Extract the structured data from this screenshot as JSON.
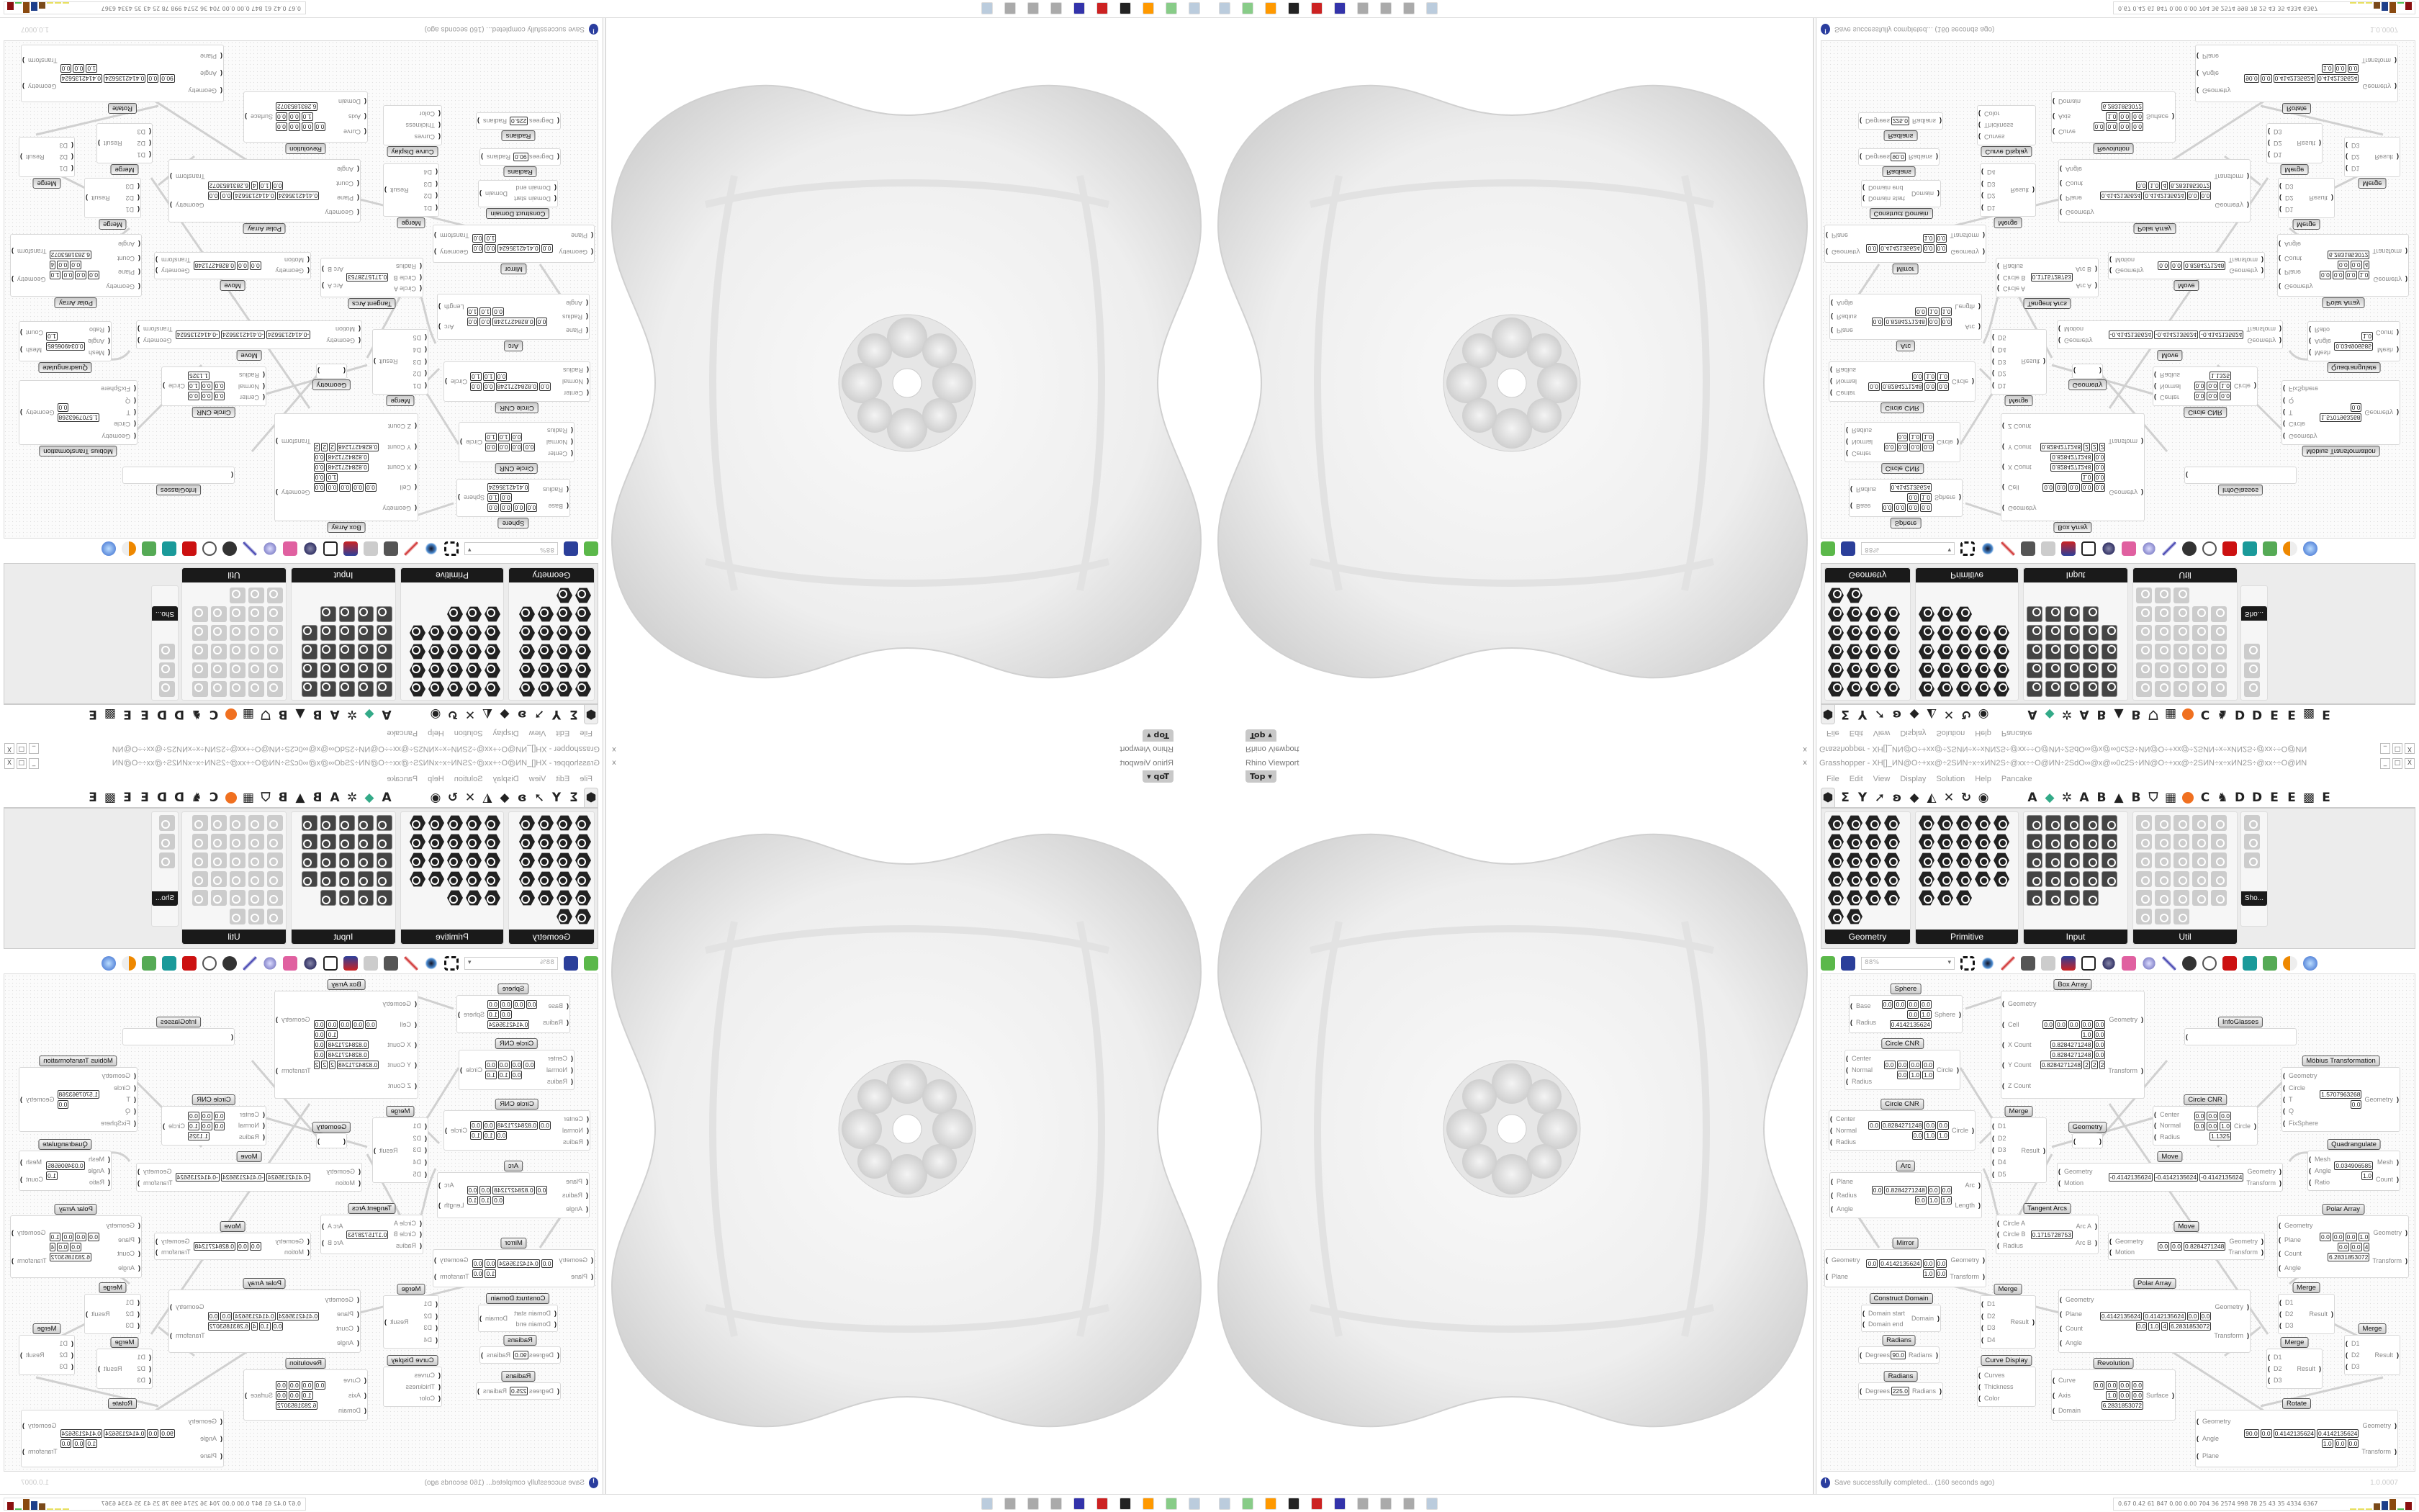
{
  "viewport": {
    "title": "Rhino Viewport",
    "view": "Top",
    "close": "x"
  },
  "grasshopper": {
    "title": "Grasshopper - XH[]_ИN@O÷+xx@÷2SИN÷x÷xИN2S÷@xx÷÷O@ИN÷2SdO∞@x@∞0c2S÷ИN@O÷+xx@÷2SИN÷x÷xИN2S÷@xx÷÷O@ИN",
    "window_buttons": [
      "_",
      "□",
      "X"
    ],
    "menu": [
      "File",
      "Edit",
      "View",
      "Display",
      "Solution",
      "Help",
      "Pancake"
    ],
    "tab_letters": [
      "A",
      "A",
      "B",
      "B",
      "C",
      "D",
      "D",
      "E",
      "E",
      "E"
    ],
    "ribbon_panels": [
      "Geometry",
      "Primitive",
      "Input",
      "Util"
    ],
    "overflow_panel": "Sho...",
    "zoom": "88%",
    "status": "Save successfully completed... (160 seconds ago)",
    "version": "1.0.0007"
  },
  "canvas": {
    "components": [
      {
        "title": "Sphere",
        "inputs": [
          "Base",
          "Radius"
        ],
        "outputs": [
          "Sphere"
        ],
        "values": [
          "0.0",
          "0.0",
          "0.0",
          "0.0",
          "0.0",
          "1.0",
          "0.4142135624"
        ]
      },
      {
        "title": "Box Array",
        "inputs": [
          "Geometry",
          "Cell",
          "X Count",
          "Y Count",
          "Z Count"
        ],
        "outputs": [
          "Geometry",
          "Transform"
        ],
        "values": [
          "0.0",
          "0.0",
          "0.0",
          "0.0",
          "0.0",
          "1.0",
          "0.0",
          "0.8284271248",
          "0.0",
          "0.8284271248",
          "0.0",
          "0.8284271248",
          "2",
          "2",
          "2"
        ]
      },
      {
        "title": "Circle CNR",
        "inputs": [
          "Center",
          "Normal",
          "Radius"
        ],
        "outputs": [
          "Circle"
        ],
        "values": [
          "0.0",
          "0.0",
          "0.0",
          "0.0",
          "0.0",
          "1.0",
          "1.0"
        ]
      },
      {
        "title": "Circle CNR",
        "inputs": [
          "Center",
          "Normal",
          "Radius"
        ],
        "outputs": [
          "Circle"
        ],
        "values": [
          "0.0",
          "0.8284271248",
          "0.0",
          "0.0",
          "0.0",
          "1.0",
          "1.0"
        ]
      },
      {
        "title": "Merge",
        "inputs": [
          "D1",
          "D2",
          "D3",
          "D4",
          "D5"
        ],
        "outputs": [
          "Result"
        ],
        "values": []
      },
      {
        "title": "Geometry",
        "inputs": [
          ""
        ],
        "outputs": [
          ""
        ],
        "values": []
      },
      {
        "title": "Arc",
        "inputs": [
          "Plane",
          "Radius",
          "Angle"
        ],
        "outputs": [
          "Arc",
          "Length"
        ],
        "values": [
          "0.0",
          "0.8284271248",
          "0.0",
          "0.0",
          "0.0",
          "1.0",
          "1.0"
        ]
      },
      {
        "title": "Move",
        "inputs": [
          "Geometry",
          "Motion"
        ],
        "outputs": [
          "Geometry",
          "Transform"
        ],
        "values": [
          "-0.4142135624",
          "-0.4142135624",
          "-0.4142135624"
        ]
      },
      {
        "title": "Tangent Arcs",
        "inputs": [
          "Circle A",
          "Circle B",
          "Radius"
        ],
        "outputs": [
          "Arc A",
          "Arc B"
        ],
        "values": [
          "0.1715728753"
        ]
      },
      {
        "title": "InfoGlasses",
        "inputs": [
          ""
        ],
        "outputs": [],
        "values": []
      },
      {
        "title": "Möbius Transformation",
        "inputs": [
          "Geometry",
          "Circle",
          "T",
          "Q",
          "FixSphere"
        ],
        "outputs": [
          "Geometry"
        ],
        "values": [
          "1.5707963268",
          "0.0"
        ]
      },
      {
        "title": "Circle CNR",
        "inputs": [
          "Center",
          "Normal",
          "Radius"
        ],
        "outputs": [
          "Circle"
        ],
        "values": [
          "0.0",
          "0.0",
          "0.0",
          "0.0",
          "0.0",
          "1.0",
          "1.1325"
        ]
      },
      {
        "title": "Quadrangulate",
        "inputs": [
          "Mesh",
          "Angle",
          "Ratio"
        ],
        "outputs": [
          "Mesh",
          "Count"
        ],
        "values": [
          "0.034906585",
          "1.0"
        ]
      },
      {
        "title": "Mirror",
        "inputs": [
          "Geometry",
          "Plane"
        ],
        "outputs": [
          "Geometry",
          "Transform"
        ],
        "values": [
          "0.0",
          "0.4142135624",
          "0.0",
          "0.0",
          "1.0",
          "0.0"
        ]
      },
      {
        "title": "Construct Domain",
        "inputs": [
          "Domain start",
          "Domain end"
        ],
        "outputs": [
          "Domain"
        ],
        "values": []
      },
      {
        "title": "Radians",
        "inputs": [
          "Degrees"
        ],
        "outputs": [
          "Radians"
        ],
        "values": [
          "90.0"
        ]
      },
      {
        "title": "Radians",
        "inputs": [
          "Degrees"
        ],
        "outputs": [
          "Radians"
        ],
        "values": [
          "225.0"
        ]
      },
      {
        "title": "Merge",
        "inputs": [
          "D1",
          "D2",
          "D3",
          "D4"
        ],
        "outputs": [
          "Result"
        ],
        "values": []
      },
      {
        "title": "Curve Display",
        "inputs": [
          "Curves",
          "Thickness",
          "Color"
        ],
        "outputs": [],
        "values": []
      },
      {
        "title": "Polar Array",
        "inputs": [
          "Geometry",
          "Plane",
          "Count",
          "Angle"
        ],
        "outputs": [
          "Geometry",
          "Transform"
        ],
        "values": [
          "0.4142135624",
          "0.4142135624",
          "0.0",
          "0.0",
          "0.0",
          "1.0",
          "4",
          "6.2831853072"
        ]
      },
      {
        "title": "Revolution",
        "inputs": [
          "Curve",
          "Axis",
          "Domain"
        ],
        "outputs": [
          "Surface"
        ],
        "values": [
          "0.0",
          "0.0",
          "0.0",
          "0.0",
          "1.0",
          "0.0",
          "0.0",
          "6.2831853072"
        ]
      },
      {
        "title": "Move",
        "inputs": [
          "Geometry",
          "Motion"
        ],
        "outputs": [
          "Geometry",
          "Transform"
        ],
        "values": [
          "0.0",
          "0.0",
          "0.8284271248"
        ]
      },
      {
        "title": "Polar Array",
        "inputs": [
          "Geometry",
          "Plane",
          "Count",
          "Angle"
        ],
        "outputs": [
          "Geometry",
          "Transform"
        ],
        "values": [
          "0.0",
          "0.0",
          "0.0",
          "1.0",
          "0.0",
          "0.0",
          "4",
          "6.2831853072"
        ]
      },
      {
        "title": "Merge",
        "inputs": [
          "D1",
          "D2",
          "D3"
        ],
        "outputs": [
          "Result"
        ],
        "values": []
      },
      {
        "title": "Merge",
        "inputs": [
          "D1",
          "D2",
          "D3"
        ],
        "outputs": [
          "Result"
        ],
        "values": []
      },
      {
        "title": "Merge",
        "inputs": [
          "D1",
          "D2",
          "D3"
        ],
        "outputs": [
          "Result"
        ],
        "values": []
      },
      {
        "title": "Rotate",
        "inputs": [
          "Geometry",
          "Angle",
          "Plane"
        ],
        "outputs": [
          "Geometry",
          "Transform"
        ],
        "values": [
          "90.0",
          "0.0",
          "0.4142135624",
          "0.4142135624",
          "1.0",
          "0.0",
          "0.0"
        ]
      }
    ]
  },
  "taskbar": {
    "stats": "0.67 0.42 61 847 0.00 0.00 704 36 2574 998 78 25 43 35 4334 6367",
    "bar_colors": [
      "#e8e060",
      "#e8e060",
      "#e8e060",
      "#7a4a1a",
      "#1e3f8a",
      "#8a4a10",
      "#50c050",
      "#8a1010"
    ]
  }
}
